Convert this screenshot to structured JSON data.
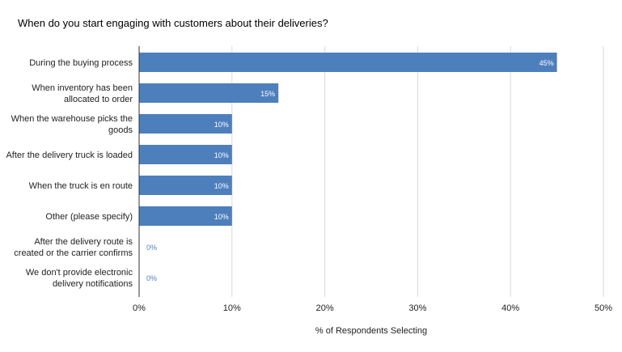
{
  "chart_data": {
    "type": "bar",
    "orientation": "horizontal",
    "title": "When do you start engaging with customers about their deliveries?",
    "xlabel": "% of Respondents Selecting",
    "ylabel": "",
    "xlim": [
      0,
      50
    ],
    "grid": true,
    "x_ticks": [
      "0%",
      "10%",
      "20%",
      "30%",
      "40%",
      "50%"
    ],
    "categories": [
      [
        "During the buying process"
      ],
      [
        "When inventory has been",
        "allocated to order"
      ],
      [
        "When the warehouse picks the",
        "goods"
      ],
      [
        "After the delivery truck is loaded"
      ],
      [
        "When the truck is en route"
      ],
      [
        "Other (please specify)"
      ],
      [
        "After the delivery route is",
        "created or the carrier confirms"
      ],
      [
        "We don't provide electronic",
        "delivery notifications"
      ]
    ],
    "values": [
      45,
      15,
      10,
      10,
      10,
      10,
      0,
      0
    ],
    "data_labels": [
      "45%",
      "15%",
      "10%",
      "10%",
      "10%",
      "10%",
      "0%",
      "0%"
    ],
    "bar_color": "#4e7fbd",
    "zero_label_color": "#4e7fbd"
  }
}
